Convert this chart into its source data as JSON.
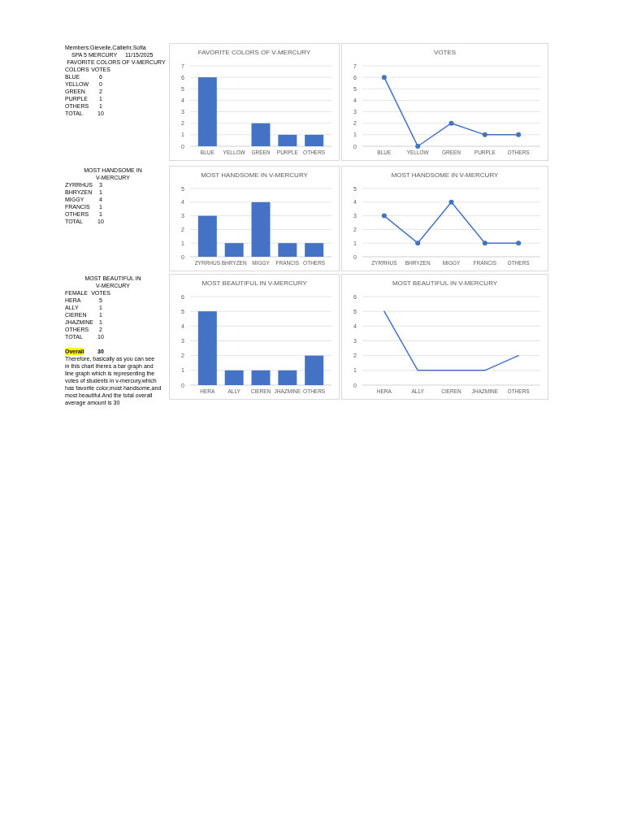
{
  "chart_data": [
    {
      "type": "other",
      "title": "Members:Gievelle,Calliehr,Sofia",
      "subtitle": "FAVORITE COLORS OF V-MERCURY",
      "annotations": [
        "SPA 5 MERCURY",
        "11/15/2025",
        "COLORS",
        "VOTES",
        "BLUE",
        "6",
        "YELLOW",
        "0",
        "GREEN",
        "2",
        "PURPLE",
        "1",
        "OTHERS",
        "1",
        "TOTAL",
        "10"
      ]
    },
    {
      "type": "bar",
      "title": "FAVORITE COLORS OF V-MERCURY",
      "categories": [
        "BLUE",
        "YELLOW",
        "GREEN",
        "PURPLE",
        "OTHERS"
      ],
      "values": [
        6,
        0,
        2,
        1,
        1
      ],
      "color": "#4472c4",
      "ylim": [
        0,
        7
      ],
      "yticks": [
        0,
        1,
        2,
        3,
        4,
        5,
        6,
        7
      ],
      "grid": "y"
    },
    {
      "type": "line",
      "title": "VOTES",
      "categories": [
        "BLUE",
        "YELLOW",
        "GREEN",
        "PURPLE",
        "OTHERS"
      ],
      "values": [
        6,
        0,
        2,
        1,
        1
      ],
      "color": "#4472c4",
      "ylim": [
        0,
        7
      ],
      "yticks": [
        0,
        1,
        2,
        3,
        4,
        5,
        6,
        7
      ],
      "grid": "y",
      "marker": "circle"
    },
    {
      "type": "other",
      "title": "MOST HANDSOME IN V-MERCURY",
      "annotations": [
        "ZYRRHUS",
        "3",
        "BHRYZEN",
        "1",
        "MIGGY",
        "4",
        "FRANCIS",
        "1",
        "OTHERS",
        "1",
        "TOTAL",
        "10"
      ]
    },
    {
      "type": "bar",
      "title": "MOST HANDSOME IN V-MERCURY",
      "categories": [
        "ZYRRHUS",
        "BHRYZEN",
        "MIGGY",
        "FRANCIS",
        "OTHERS"
      ],
      "values": [
        3,
        1,
        4,
        1,
        1
      ],
      "color": "#4472c4",
      "ylim": [
        0,
        5
      ],
      "yticks": [
        0,
        1,
        2,
        3,
        4,
        5
      ],
      "grid": "y"
    },
    {
      "type": "line",
      "title": "MOST HANDSOME IN V-MERCURY",
      "categories": [
        "ZYRRHUS",
        "BHRYZEN",
        "MIGGY",
        "FRANCIS",
        "OTHERS"
      ],
      "values": [
        3,
        1,
        4,
        1,
        1
      ],
      "color": "#4472c4",
      "ylim": [
        0,
        5
      ],
      "yticks": [
        0,
        1,
        2,
        3,
        4,
        5
      ],
      "grid": "y",
      "marker": "circle"
    },
    {
      "type": "other",
      "title": "MOST BEAUTIFUL IN V-MERCURY",
      "annotations": [
        "FEMALE",
        "VOTES",
        "HERA",
        "5",
        "ALLY",
        "1",
        "CIEREN",
        "1",
        "JHAZMINE",
        "1",
        "OTHERS",
        "2",
        "TOTAL",
        "10",
        "Overall",
        "30",
        "Therefore, basically as you can see in this chart theres a bar graph and line graph which is representing the votes of students in v-mercury,which has favorite color,most handsome,and most beautiful.And the total overall average amount is 30"
      ]
    },
    {
      "type": "bar",
      "title": "MOST BEAUTIFUL IN V-MERCURY",
      "categories": [
        "HERA",
        "ALLY",
        "CIEREN",
        "JHAZMINE",
        "OTHERS"
      ],
      "values": [
        5,
        1,
        1,
        1,
        2
      ],
      "color": "#4472c4",
      "ylim": [
        0,
        6
      ],
      "yticks": [
        0,
        1,
        2,
        3,
        4,
        5,
        6
      ],
      "grid": "y"
    },
    {
      "type": "line",
      "title": "MOST BEAUTIFUL IN V-MERCURY",
      "categories": [
        "HERA",
        "ALLY",
        "CIEREN",
        "JHAZMINE",
        "OTHERS"
      ],
      "values": [
        5,
        1,
        1,
        1,
        2
      ],
      "color": "#4472c4",
      "ylim": [
        0,
        6
      ],
      "yticks": [
        0,
        1,
        2,
        3,
        4,
        5,
        6
      ],
      "grid": "y",
      "marker": "none"
    }
  ]
}
